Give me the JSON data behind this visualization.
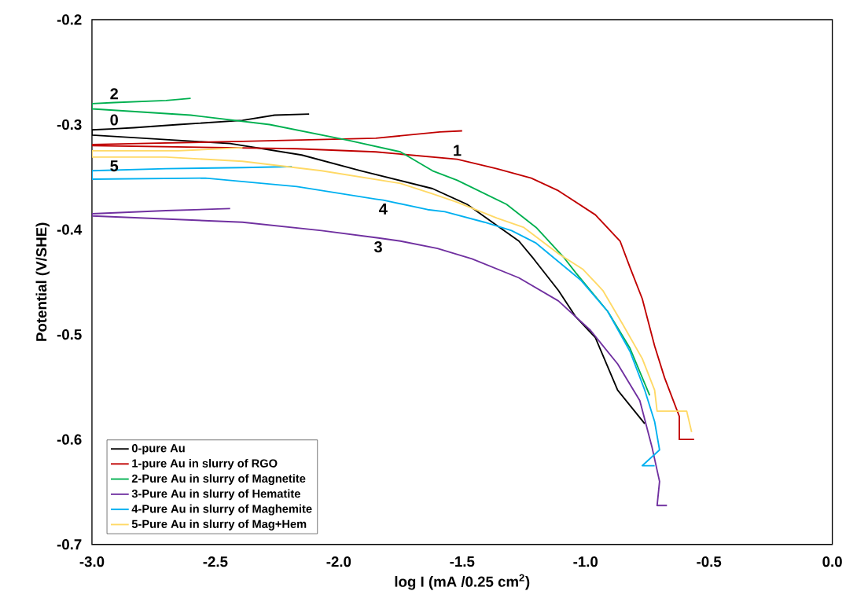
{
  "chart_data": {
    "type": "line",
    "xlabel": "log I (mA /0.25 cm$^{2}$)",
    "ylabel": "Potential (V/SHE)",
    "xlim": [
      -3.0,
      0.0
    ],
    "ylim": [
      -0.7,
      -0.2
    ],
    "xticks": [
      {
        "value": -3.0,
        "label": "-3.0"
      },
      {
        "value": -2.5,
        "label": "-2.5"
      },
      {
        "value": -2.0,
        "label": "-2.0"
      },
      {
        "value": -1.5,
        "label": "-1.5"
      },
      {
        "value": -1.0,
        "label": "-1.0"
      },
      {
        "value": -0.5,
        "label": "-0.5"
      },
      {
        "value": 0.0,
        "label": "0.0"
      }
    ],
    "yticks": [
      -0.7,
      -0.6,
      -0.5,
      -0.4,
      -0.3,
      -0.2
    ],
    "grid": false,
    "legend": "bottom left",
    "marker": "none",
    "line_style": "solid",
    "series": [
      {
        "name": "0-pure Au",
        "color": "#000000",
        "x": [
          -0.76,
          -0.87,
          -0.96,
          -1.04,
          -1.11,
          -1.21,
          -1.27,
          -1.48,
          -1.62,
          -1.91,
          -2.15,
          -2.44,
          -3.0,
          -3.0,
          -2.91,
          -2.83,
          -2.65,
          -2.39,
          -2.26,
          -2.12
        ],
        "values": [
          -0.585,
          -0.553,
          -0.503,
          -0.483,
          -0.458,
          -0.428,
          -0.411,
          -0.376,
          -0.361,
          -0.344,
          -0.329,
          -0.318,
          -0.31,
          -0.305,
          -0.304,
          -0.303,
          -0.3,
          -0.296,
          -0.291,
          -0.29
        ]
      },
      {
        "name": "1-pure Au in slurry of RGO",
        "color": "#c00000",
        "x": [
          -0.56,
          -0.62,
          -0.62,
          -0.68,
          -0.72,
          -0.77,
          -0.82,
          -0.86,
          -0.96,
          -1.11,
          -1.22,
          -1.36,
          -1.52,
          -1.85,
          -2.17,
          -3.0,
          -3.0,
          -2.81,
          -2.39,
          -1.85,
          -1.59,
          -1.5
        ],
        "values": [
          -0.6,
          -0.6,
          -0.578,
          -0.541,
          -0.511,
          -0.466,
          -0.436,
          -0.411,
          -0.386,
          -0.363,
          -0.351,
          -0.342,
          -0.333,
          -0.326,
          -0.323,
          -0.32,
          -0.319,
          -0.318,
          -0.316,
          -0.313,
          -0.307,
          -0.306
        ]
      },
      {
        "name": "2-Pure Au in slurry of Magnetite",
        "color": "#00b050",
        "x": [
          -0.74,
          -0.82,
          -0.91,
          -1.04,
          -1.09,
          -1.2,
          -1.32,
          -1.52,
          -1.62,
          -1.75,
          -1.96,
          -2.28,
          -2.6,
          -3.0,
          -3.0,
          -2.91,
          -2.7,
          -2.6
        ],
        "values": [
          -0.558,
          -0.513,
          -0.478,
          -0.441,
          -0.426,
          -0.398,
          -0.376,
          -0.353,
          -0.344,
          -0.326,
          -0.315,
          -0.3,
          -0.291,
          -0.285,
          -0.28,
          -0.279,
          -0.277,
          -0.275
        ]
      },
      {
        "name": "3-Pure Au in slurry of Hematite",
        "color": "#7030a0",
        "x": [
          -0.67,
          -0.71,
          -0.7,
          -0.73,
          -0.78,
          -0.87,
          -0.98,
          -1.11,
          -1.27,
          -1.46,
          -1.6,
          -1.75,
          -1.84,
          -2.07,
          -2.39,
          -3.0,
          -3.0,
          -2.7,
          -2.44
        ],
        "values": [
          -0.663,
          -0.663,
          -0.64,
          -0.608,
          -0.563,
          -0.528,
          -0.496,
          -0.468,
          -0.446,
          -0.428,
          -0.418,
          -0.411,
          -0.408,
          -0.401,
          -0.393,
          -0.387,
          -0.385,
          -0.382,
          -0.38
        ]
      },
      {
        "name": "4-Pure Au in slurry of Maghemite",
        "color": "#00b0f0",
        "x": [
          -0.72,
          -0.77,
          -0.7,
          -0.72,
          -0.76,
          -0.82,
          -0.91,
          -1.02,
          -1.2,
          -1.3,
          -1.41,
          -1.57,
          -1.64,
          -1.82,
          -1.85,
          -2.17,
          -2.54,
          -3.0,
          -3.0,
          -2.7,
          -2.39,
          -2.19
        ],
        "values": [
          -0.625,
          -0.625,
          -0.61,
          -0.583,
          -0.553,
          -0.516,
          -0.478,
          -0.448,
          -0.413,
          -0.401,
          -0.393,
          -0.383,
          -0.381,
          -0.372,
          -0.371,
          -0.359,
          -0.351,
          -0.352,
          -0.344,
          -0.342,
          -0.341,
          -0.34
        ]
      },
      {
        "name": "5-Pure Au in slurry of Mag+Hem",
        "color": "#ffd966",
        "x": [
          -0.57,
          -0.59,
          -0.71,
          -0.72,
          -0.77,
          -0.85,
          -0.93,
          -1.01,
          -1.11,
          -1.25,
          -1.36,
          -1.52,
          -1.62,
          -1.75,
          -2.07,
          -2.39,
          -2.7,
          -2.91,
          -3.0,
          -3.0,
          -2.65,
          -2.39
        ],
        "values": [
          -0.593,
          -0.573,
          -0.573,
          -0.553,
          -0.523,
          -0.49,
          -0.458,
          -0.438,
          -0.423,
          -0.398,
          -0.389,
          -0.374,
          -0.366,
          -0.356,
          -0.344,
          -0.335,
          -0.331,
          -0.331,
          -0.331,
          -0.325,
          -0.325,
          -0.322
        ]
      }
    ],
    "annotations": [
      {
        "text": "0",
        "x": -2.91,
        "y": -0.304
      },
      {
        "text": "1",
        "x": -1.52,
        "y": -0.333
      },
      {
        "text": "2",
        "x": -2.91,
        "y": -0.279
      },
      {
        "text": "3",
        "x": -1.84,
        "y": -0.408
      },
      {
        "text": "4",
        "x": -1.82,
        "y": -0.372
      },
      {
        "text": "5",
        "x": -2.91,
        "y": -0.331
      }
    ]
  }
}
